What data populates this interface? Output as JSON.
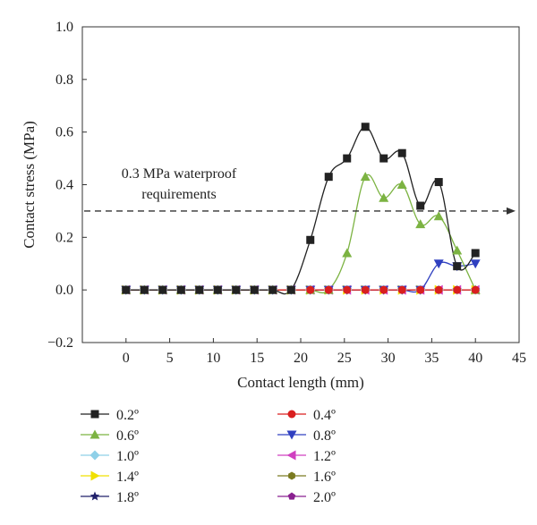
{
  "chart_data": {
    "type": "line",
    "xlabel": "Contact length (mm)",
    "ylabel": "Contact stress (MPa)",
    "xlim": [
      -5,
      45
    ],
    "ylim": [
      -0.2,
      1.0
    ],
    "x_ticks": [
      "0",
      "5",
      "10",
      "15",
      "20",
      "25",
      "30",
      "35",
      "40",
      "45"
    ],
    "y_ticks": [
      "−0.2",
      "0.0",
      "0.2",
      "0.4",
      "0.6",
      "0.8",
      "1.0"
    ],
    "x_tick_values": [
      0,
      5,
      10,
      15,
      20,
      25,
      30,
      35,
      40,
      45
    ],
    "y_tick_values": [
      -0.2,
      0.0,
      0.2,
      0.4,
      0.6,
      0.8,
      1.0
    ],
    "grid": false,
    "legend_position": "bottom",
    "annotation": {
      "lines": [
        "0.3 MPa waterproof",
        "requirements"
      ],
      "y": 0.3
    },
    "x": [
      0,
      2.1,
      4.2,
      6.3,
      8.4,
      10.5,
      12.6,
      14.7,
      16.8,
      18.9,
      21.1,
      23.2,
      25.3,
      27.4,
      29.5,
      31.6,
      33.7,
      35.8,
      37.9,
      40.0
    ],
    "series": [
      {
        "name": "0.2º",
        "marker": "square",
        "color": "#222222",
        "line_color": "#222222",
        "values": [
          0,
          0,
          0,
          0,
          0,
          0,
          0,
          0,
          0,
          0,
          0.19,
          0.43,
          0.5,
          0.62,
          0.5,
          0.52,
          0.32,
          0.41,
          0.09,
          0.14
        ]
      },
      {
        "name": "0.4º",
        "marker": "circle",
        "color": "#d91f1f",
        "line_color": "#d91f1f",
        "values": [
          0,
          0,
          0,
          0,
          0,
          0,
          0,
          0,
          0,
          0,
          0,
          0,
          0,
          0,
          0,
          0,
          0,
          0,
          0,
          0
        ]
      },
      {
        "name": "0.6º",
        "marker": "triangle-up",
        "color": "#7cb342",
        "line_color": "#7cb342",
        "values": [
          0,
          0,
          0,
          0,
          0,
          0,
          0,
          0,
          0,
          0,
          0,
          0,
          0.14,
          0.43,
          0.35,
          0.4,
          0.25,
          0.28,
          0.15,
          0
        ]
      },
      {
        "name": "0.8º",
        "marker": "triangle-down",
        "color": "#3040c0",
        "line_color": "#3040c0",
        "values": [
          0,
          0,
          0,
          0,
          0,
          0,
          0,
          0,
          0,
          0,
          0,
          0,
          0,
          0,
          0,
          0,
          0,
          0.1,
          0.09,
          0.1
        ]
      },
      {
        "name": "1.0º",
        "marker": "diamond",
        "color": "#8fd0e8",
        "line_color": "#8fd0e8",
        "values": [
          0,
          0,
          0,
          0,
          0,
          0,
          0,
          0,
          0,
          0,
          0,
          0,
          0,
          0,
          0,
          0,
          0,
          0,
          0,
          0
        ]
      },
      {
        "name": "1.2º",
        "marker": "triangle-left",
        "color": "#d040c0",
        "line_color": "#d040c0",
        "values": [
          0,
          0,
          0,
          0,
          0,
          0,
          0,
          0,
          0,
          0,
          0,
          0,
          0,
          0,
          0,
          0,
          0,
          0,
          0,
          0
        ]
      },
      {
        "name": "1.4º",
        "marker": "triangle-right",
        "color": "#f0e000",
        "line_color": "#f0e000",
        "values": [
          0,
          0,
          0,
          0,
          0,
          0,
          0,
          0,
          0,
          0,
          0,
          0,
          0,
          0,
          0,
          0,
          0,
          0,
          0,
          0
        ]
      },
      {
        "name": "1.6º",
        "marker": "hexagon",
        "color": "#7a7a20",
        "line_color": "#7a7a20",
        "values": [
          0,
          0,
          0,
          0,
          0,
          0,
          0,
          0,
          0,
          0,
          0,
          0,
          0,
          0,
          0,
          0,
          0,
          0,
          0,
          0
        ]
      },
      {
        "name": "1.8º",
        "marker": "star",
        "color": "#20206a",
        "line_color": "#20206a",
        "values": [
          0,
          0,
          0,
          0,
          0,
          0,
          0,
          0,
          0,
          0,
          0,
          0,
          0,
          0,
          0,
          0,
          0,
          0,
          0,
          0
        ]
      },
      {
        "name": "2.0º",
        "marker": "pentagon",
        "color": "#8a2090",
        "line_color": "#8a2090",
        "values": [
          0,
          0,
          0,
          0,
          0,
          0,
          0,
          0,
          0,
          0,
          0,
          0,
          0,
          0,
          0,
          0,
          0,
          0,
          0,
          0
        ]
      }
    ]
  }
}
